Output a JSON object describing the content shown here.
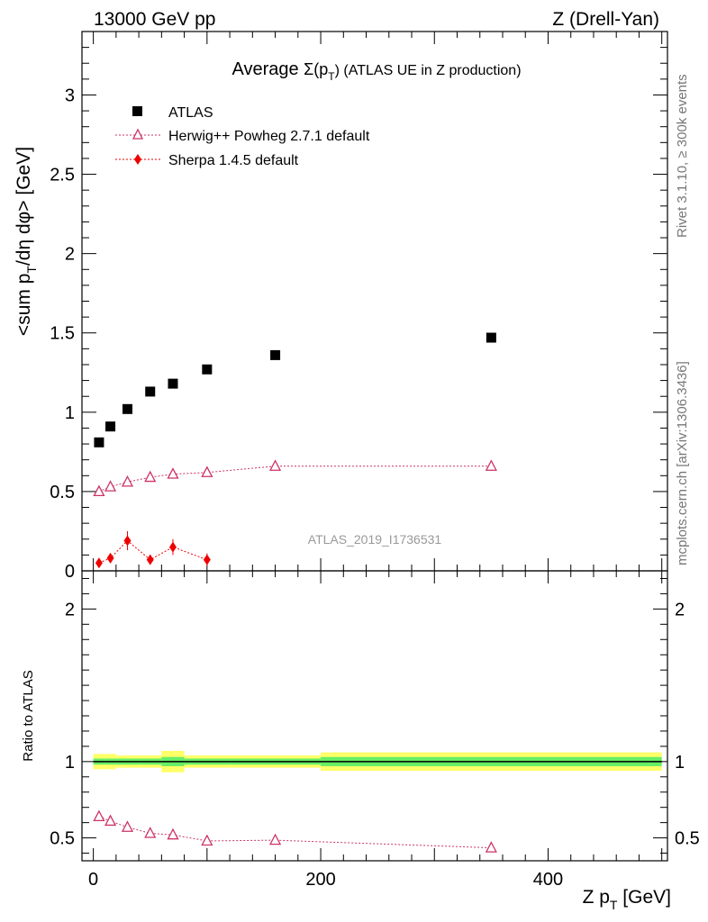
{
  "header": {
    "energy": "13000 GeV pp",
    "process": "Z (Drell-Yan)"
  },
  "side": {
    "rivet": "Rivet 3.1.10, ≥ 300k events",
    "mcplots": "mcplots.cern.ch [arXiv:1306.3436]"
  },
  "colors": {
    "atlas": "#000000",
    "herwig": "#cc3366",
    "sherpa": "#ee0000",
    "band_inner": "#66ee66",
    "band_outer": "#ffff66"
  },
  "chart_data": [
    {
      "type": "scatter",
      "title_prefix": "Average ",
      "title_symbol": "Σ(p",
      "title_sub": "T",
      "title_suffix": ") (ATLAS UE in Z production)",
      "ylabel_main": "<sum p",
      "ylabel_sub": "T",
      "ylabel_rest": "/dη dφ> [GeV]",
      "watermark": "ATLAS_2019_I1736531",
      "xlim": [
        -10,
        505
      ],
      "ylim": [
        0,
        3.4
      ],
      "yticks": [
        0,
        0.5,
        1,
        1.5,
        2,
        2.5,
        3
      ],
      "ytick_labels": [
        "0",
        "0.5",
        "1",
        "1.5",
        "2",
        "2.5",
        "3"
      ],
      "legend": [
        "ATLAS",
        "Herwig++ Powheg 2.7.1 default",
        "Sherpa 1.4.5 default"
      ],
      "series": [
        {
          "name": "ATLAS",
          "x": [
            5,
            15,
            30,
            50,
            70,
            100,
            160,
            350
          ],
          "y": [
            0.81,
            0.91,
            1.02,
            1.13,
            1.18,
            1.27,
            1.36,
            1.47
          ]
        },
        {
          "name": "Herwig++ Powheg 2.7.1 default",
          "x": [
            5,
            15,
            30,
            50,
            70,
            100,
            160,
            350
          ],
          "y": [
            0.5,
            0.53,
            0.56,
            0.59,
            0.61,
            0.62,
            0.66,
            0.66
          ],
          "err": [
            0.01,
            0.01,
            0.01,
            0.01,
            0.01,
            0.01,
            0.01,
            0.03
          ]
        },
        {
          "name": "Sherpa 1.4.5 default",
          "x": [
            5,
            15,
            30,
            50,
            70,
            100
          ],
          "y": [
            0.05,
            0.08,
            0.19,
            0.07,
            0.15,
            0.07
          ],
          "err": [
            0.02,
            0.03,
            0.06,
            0.03,
            0.05,
            0.04
          ]
        }
      ]
    },
    {
      "type": "line",
      "ylabel": "Ratio to ATLAS",
      "xlabel_main": "Z p",
      "xlabel_sub": "T",
      "xlabel_rest": " [GeV]",
      "xlim": [
        -10,
        505
      ],
      "ylim": [
        0.35,
        2.25
      ],
      "xticks": [
        0,
        200,
        400
      ],
      "xtick_labels": [
        "0",
        "200",
        "400"
      ],
      "yticks": [
        0.5,
        1,
        2
      ],
      "ytick_labels": [
        "0.5",
        "1",
        "2"
      ],
      "bands": [
        {
          "x0": 0,
          "x1": 10,
          "inner": 0.02,
          "outer": 0.05
        },
        {
          "x0": 10,
          "x1": 20,
          "inner": 0.02,
          "outer": 0.05
        },
        {
          "x0": 20,
          "x1": 40,
          "inner": 0.02,
          "outer": 0.04
        },
        {
          "x0": 40,
          "x1": 60,
          "inner": 0.02,
          "outer": 0.04
        },
        {
          "x0": 60,
          "x1": 80,
          "inner": 0.03,
          "outer": 0.07
        },
        {
          "x0": 80,
          "x1": 120,
          "inner": 0.02,
          "outer": 0.04
        },
        {
          "x0": 120,
          "x1": 200,
          "inner": 0.02,
          "outer": 0.04
        },
        {
          "x0": 200,
          "x1": 500,
          "inner": 0.03,
          "outer": 0.06
        }
      ],
      "series": [
        {
          "name": "Herwig++ Powheg 2.7.1 default",
          "x": [
            5,
            15,
            30,
            50,
            70,
            100,
            160,
            350
          ],
          "y": [
            0.64,
            0.61,
            0.57,
            0.53,
            0.52,
            0.48,
            0.485,
            0.435
          ],
          "err": [
            0.01,
            0.01,
            0.01,
            0.01,
            0.01,
            0.01,
            0.01,
            0.03
          ]
        }
      ]
    }
  ]
}
